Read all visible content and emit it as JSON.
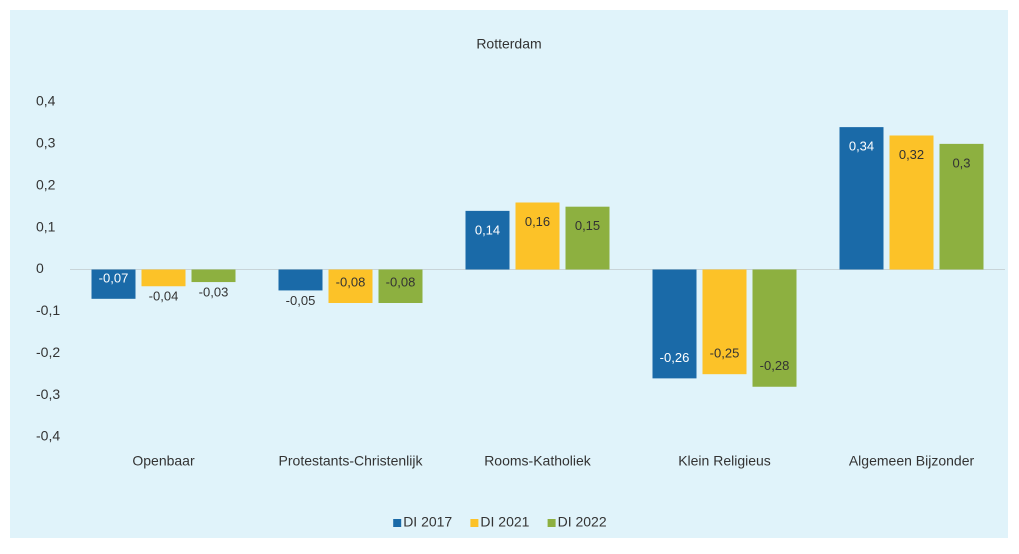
{
  "chart_data": {
    "type": "bar",
    "title": "Rotterdam",
    "categories": [
      "Openbaar",
      "Protestants-Christenlijk",
      "Rooms-Katholiek",
      "Klein Religieus",
      "Algemeen Bijzonder"
    ],
    "series": [
      {
        "name": "DI 2017",
        "color": "#1a6aa8",
        "values": [
          -0.07,
          -0.05,
          0.14,
          -0.26,
          0.34
        ],
        "value_labels": [
          "-0,07",
          "-0,05",
          "0,14",
          "-0,26",
          "0,34"
        ]
      },
      {
        "name": "DI 2021",
        "color": "#fcc228",
        "values": [
          -0.04,
          -0.08,
          0.16,
          -0.25,
          0.32
        ],
        "value_labels": [
          "-0,04",
          "-0,08",
          "0,16",
          "-0,25",
          "0,32"
        ]
      },
      {
        "name": "DI 2022",
        "color": "#8db040",
        "values": [
          -0.03,
          -0.08,
          0.15,
          -0.28,
          0.3
        ],
        "value_labels": [
          "-0,03",
          "-0,08",
          "0,15",
          "-0,28",
          "0,3"
        ]
      }
    ],
    "ylim": [
      -0.4,
      0.4
    ],
    "yticks": [
      {
        "value": -0.4,
        "label": "-0,4"
      },
      {
        "value": -0.3,
        "label": "-0,3"
      },
      {
        "value": -0.2,
        "label": "-0,2"
      },
      {
        "value": -0.1,
        "label": "-0,1"
      },
      0,
      {
        "value": 0.1,
        "label": "0,1"
      },
      {
        "value": 0.2,
        "label": "0,2"
      },
      {
        "value": 0.3,
        "label": "0,3"
      },
      {
        "value": 0.4,
        "label": "0,4"
      }
    ],
    "grid": false,
    "legend": "bottom"
  }
}
